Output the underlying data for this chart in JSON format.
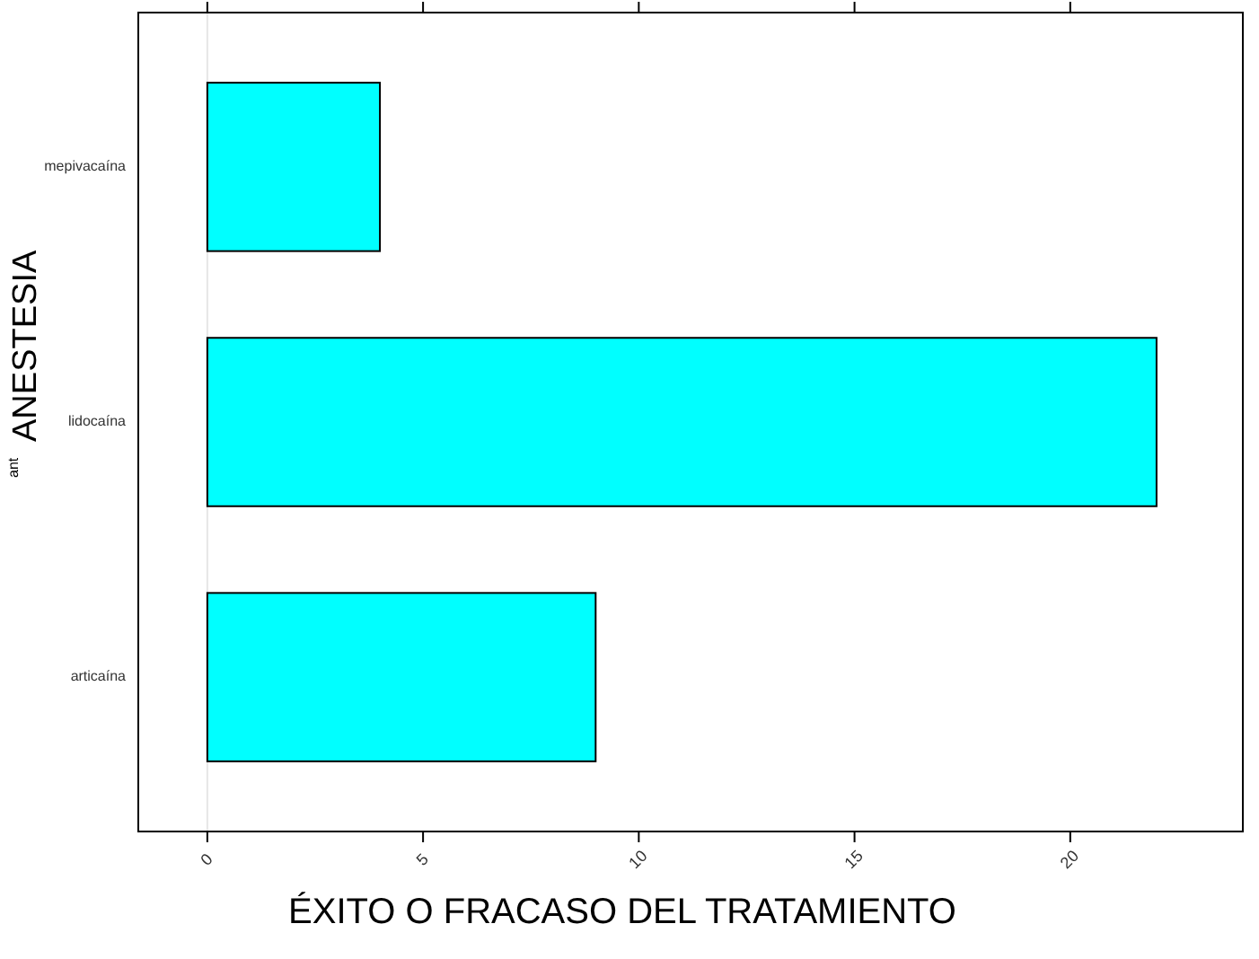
{
  "chart_data": {
    "type": "bar",
    "orientation": "horizontal",
    "xlabel": "ÉXITO O FRACASO DEL TRATAMIENTO",
    "ylabel": "ANESTESIA",
    "annotations": [
      "ant"
    ],
    "categories": [
      "mepivacaína",
      "lidocaína",
      "articaína"
    ],
    "values": [
      4,
      22,
      9
    ],
    "color": "#00ffff",
    "xlim": [
      -1.6,
      24.0
    ],
    "xticks": [
      0,
      5,
      10,
      15,
      20
    ],
    "ref_lines": [
      {
        "axis": "x",
        "value": 0,
        "color": "#e6e6e6"
      }
    ],
    "grid": false
  }
}
